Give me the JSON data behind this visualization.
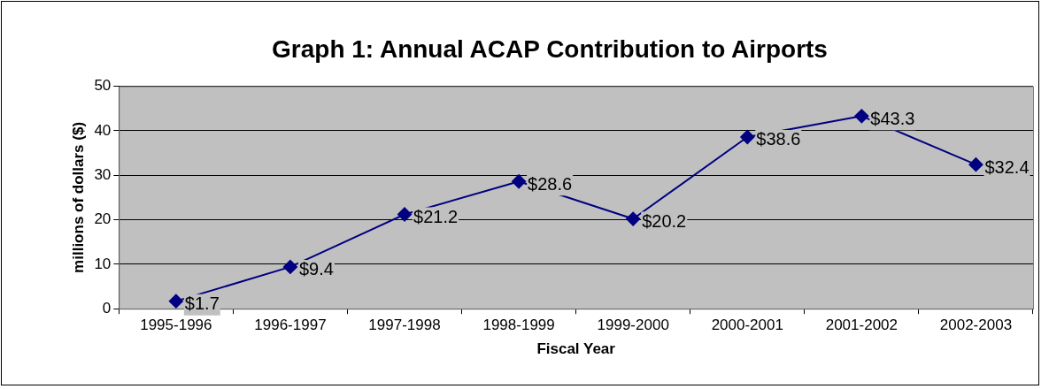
{
  "chart_data": {
    "type": "line",
    "title": "Graph 1: Annual ACAP Contribution to Airports",
    "xlabel": "Fiscal Year",
    "ylabel": "millions of dollars ($)",
    "categories": [
      "1995-1996",
      "1996-1997",
      "1997-1998",
      "1998-1999",
      "1999-2000",
      "2000-2001",
      "2001-2002",
      "2002-2003"
    ],
    "series": [
      {
        "color": "#000080",
        "values": [
          1.7,
          9.4,
          21.2,
          28.6,
          20.2,
          38.6,
          43.3,
          32.4
        ],
        "value_labels": [
          "$1.7",
          "$9.4",
          "$21.2",
          "$28.6",
          "$20.2",
          "$38.6",
          "$43.3",
          "$32.4"
        ]
      }
    ],
    "ylim": [
      0,
      50
    ],
    "yticks": [
      0,
      10,
      20,
      30,
      40,
      50
    ],
    "grid": "y",
    "legend": false,
    "marker": "diamond",
    "line_style": "solid"
  }
}
